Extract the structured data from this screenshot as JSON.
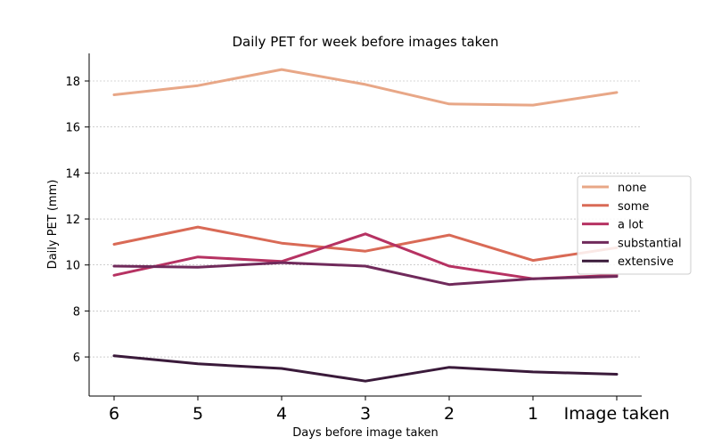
{
  "chart_data": {
    "type": "line",
    "title": "Daily PET for week before images taken",
    "xlabel": "Days before image taken",
    "ylabel": "Daily PET (mm)",
    "categories": [
      "6",
      "5",
      "4",
      "3",
      "2",
      "1",
      "Image taken"
    ],
    "ylim": [
      4.3,
      19.2
    ],
    "yticks": [
      6,
      8,
      10,
      12,
      14,
      16,
      18
    ],
    "grid": "y-dashed",
    "legend_position": "right",
    "series": [
      {
        "name": "none",
        "color": "#e8a787",
        "values": [
          17.4,
          17.8,
          18.5,
          17.85,
          17.0,
          16.95,
          17.5
        ]
      },
      {
        "name": "some",
        "color": "#d96a56",
        "values": [
          10.9,
          11.65,
          10.95,
          10.6,
          11.3,
          10.2,
          10.75
        ]
      },
      {
        "name": "a lot",
        "color": "#b63262",
        "values": [
          9.55,
          10.35,
          10.15,
          11.35,
          9.95,
          9.4,
          9.55
        ]
      },
      {
        "name": "substantial",
        "color": "#702a5b",
        "values": [
          9.95,
          9.9,
          10.1,
          9.95,
          9.15,
          9.4,
          9.5
        ]
      },
      {
        "name": "extensive",
        "color": "#3a1a3a",
        "values": [
          6.05,
          5.7,
          5.5,
          4.95,
          5.55,
          5.35,
          5.25
        ]
      }
    ]
  }
}
